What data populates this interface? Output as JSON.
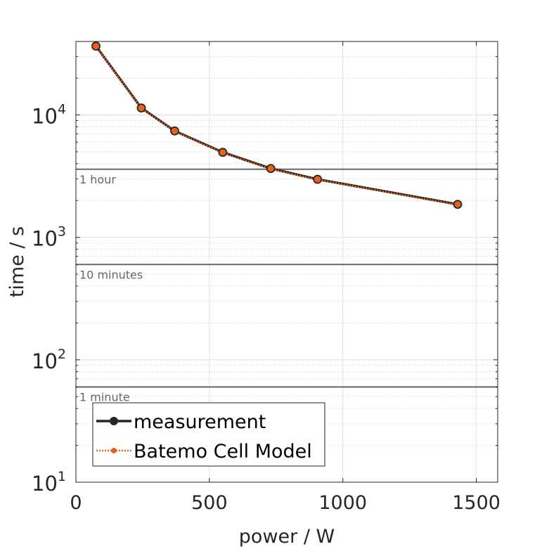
{
  "chart_data": {
    "type": "line",
    "xlabel": "power / W",
    "ylabel": "time / s",
    "xlim": [
      0,
      1580
    ],
    "ylim_log10": [
      1,
      4.6
    ],
    "y_scale": "log",
    "grid": true,
    "x_ticks": [
      0,
      500,
      1000,
      1500
    ],
    "x_tick_labels": [
      "0",
      "500",
      "1000",
      "1500"
    ],
    "y_ticks": [
      10,
      100,
      1000,
      10000
    ],
    "y_tick_labels": [
      {
        "base": "10",
        "exp": "1"
      },
      {
        "base": "10",
        "exp": "2"
      },
      {
        "base": "10",
        "exp": "3"
      },
      {
        "base": "10",
        "exp": "4"
      }
    ],
    "reference_lines": [
      {
        "y": 3600,
        "label": "1 hour"
      },
      {
        "y": 600,
        "label": "10 minutes"
      },
      {
        "y": 60,
        "label": "1 minute"
      }
    ],
    "series": [
      {
        "name": "measurement",
        "color": "#262626",
        "style": "solid",
        "x": [
          75,
          245,
          370,
          550,
          730,
          905,
          1430
        ],
        "y": [
          36500,
          11400,
          7400,
          4950,
          3650,
          2980,
          1860
        ]
      },
      {
        "name": "Batemo Cell Model",
        "color": "#e8621b",
        "style": "dotted",
        "x": [
          75,
          245,
          370,
          550,
          730,
          905,
          1430
        ],
        "y": [
          36300,
          11300,
          7350,
          4900,
          3620,
          2960,
          1840
        ]
      }
    ],
    "legend_position": "bottom-left"
  },
  "colors": {
    "grid": "#e0e0e0",
    "axis": "#262626",
    "reference_line": "#666666",
    "marker_fill": "#e8621b",
    "marker_edge": "#262626"
  }
}
